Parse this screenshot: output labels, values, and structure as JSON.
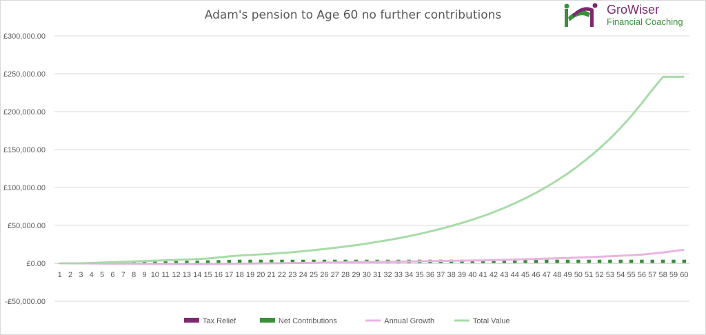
{
  "chart_data": {
    "type": "line",
    "title": "Adam's pension to Age 60 no further contributions",
    "xlabel": "",
    "ylabel": "",
    "ylim": [
      -50000,
      300000
    ],
    "yticks": [
      -50000,
      0,
      50000,
      100000,
      150000,
      200000,
      250000,
      300000
    ],
    "ytick_labels": [
      "-£50,000.00",
      "£0.00",
      "£50,000.00",
      "£100,000.00",
      "£150,000.00",
      "£200,000.00",
      "£250,000.00",
      "£300,000.00"
    ],
    "x": [
      1,
      2,
      3,
      4,
      5,
      6,
      7,
      8,
      9,
      10,
      11,
      12,
      13,
      14,
      15,
      16,
      17,
      18,
      19,
      20,
      21,
      22,
      23,
      24,
      25,
      26,
      27,
      28,
      29,
      30,
      31,
      32,
      33,
      34,
      35,
      36,
      37,
      38,
      39,
      40,
      41,
      42,
      43,
      44,
      45,
      46,
      47,
      48,
      49,
      50,
      51,
      52,
      53,
      54,
      55,
      56,
      57,
      58,
      59,
      60
    ],
    "grid": "horizontal",
    "legend_position": "bottom",
    "series": [
      {
        "name": "Tax Relief",
        "kind": "column",
        "color": "#7b2a6f",
        "values": [
          0,
          0,
          0,
          0,
          0,
          0,
          0,
          0,
          0,
          0,
          0,
          0,
          0,
          0,
          0,
          0,
          0,
          0,
          0,
          0,
          0,
          0,
          0,
          0,
          0,
          0,
          0,
          0,
          0,
          0,
          0,
          0,
          0,
          0,
          0,
          0,
          0,
          0,
          0,
          0,
          0,
          0,
          0,
          0,
          0,
          0,
          0,
          0,
          0,
          0,
          0,
          0,
          0,
          0,
          0,
          0,
          0,
          0,
          0,
          0
        ]
      },
      {
        "name": "Net Contributions",
        "kind": "column",
        "color": "#3a8f3a",
        "values": [
          300,
          400,
          500,
          700,
          900,
          1100,
          1400,
          1700,
          1900,
          2200,
          2600,
          3000,
          3300,
          3600,
          4000,
          4300,
          4600,
          4800,
          4800,
          4800,
          4800,
          4800,
          4800,
          4800,
          4800,
          4800,
          4800,
          4800,
          4800,
          4800,
          4800,
          4800,
          4800,
          4800,
          4800,
          4800,
          4800,
          4800,
          4800,
          4800,
          4800,
          4800,
          4800,
          4800,
          4800,
          4800,
          4800,
          4800,
          4800,
          4800,
          4800,
          4800,
          4800,
          4800,
          4800,
          4800,
          4800,
          4800,
          4800,
          4800
        ]
      },
      {
        "name": "Annual Growth",
        "kind": "line",
        "color": "#e8b4e0",
        "values": [
          0,
          0,
          -100,
          -200,
          -300,
          -400,
          -500,
          -600,
          -700,
          -800,
          -900,
          -1000,
          -1100,
          -1100,
          -1000,
          -900,
          -700,
          -500,
          -300,
          -100,
          0,
          100,
          300,
          500,
          700,
          900,
          1100,
          1300,
          1500,
          1700,
          1900,
          2100,
          2300,
          2500,
          2700,
          2900,
          3100,
          3300,
          3500,
          3700,
          3900,
          4200,
          4600,
          5000,
          5400,
          5800,
          6200,
          6600,
          7100,
          7600,
          8100,
          8700,
          9300,
          10000,
          10700,
          11500,
          12800,
          14300,
          16100,
          17900
        ]
      },
      {
        "name": "Total Value",
        "kind": "line",
        "color": "#a8dba8",
        "values": [
          0,
          0,
          0,
          500,
          1000,
          1500,
          2000,
          2500,
          3000,
          3500,
          4000,
          4500,
          5000,
          5700,
          6400,
          7700,
          9200,
          10200,
          11000,
          11800,
          12600,
          13600,
          14700,
          16000,
          17400,
          18900,
          20500,
          22200,
          24000,
          26000,
          28300,
          30600,
          33100,
          35800,
          38800,
          42000,
          45500,
          49200,
          53200,
          57600,
          62300,
          67500,
          73100,
          79200,
          85800,
          93000,
          100800,
          109300,
          118500,
          128600,
          139600,
          151500,
          164500,
          178700,
          194200,
          211200,
          229000,
          246000,
          246000,
          246000
        ]
      }
    ]
  },
  "logo": {
    "name": "GroWiser",
    "subtitle": "Financial Coaching"
  }
}
